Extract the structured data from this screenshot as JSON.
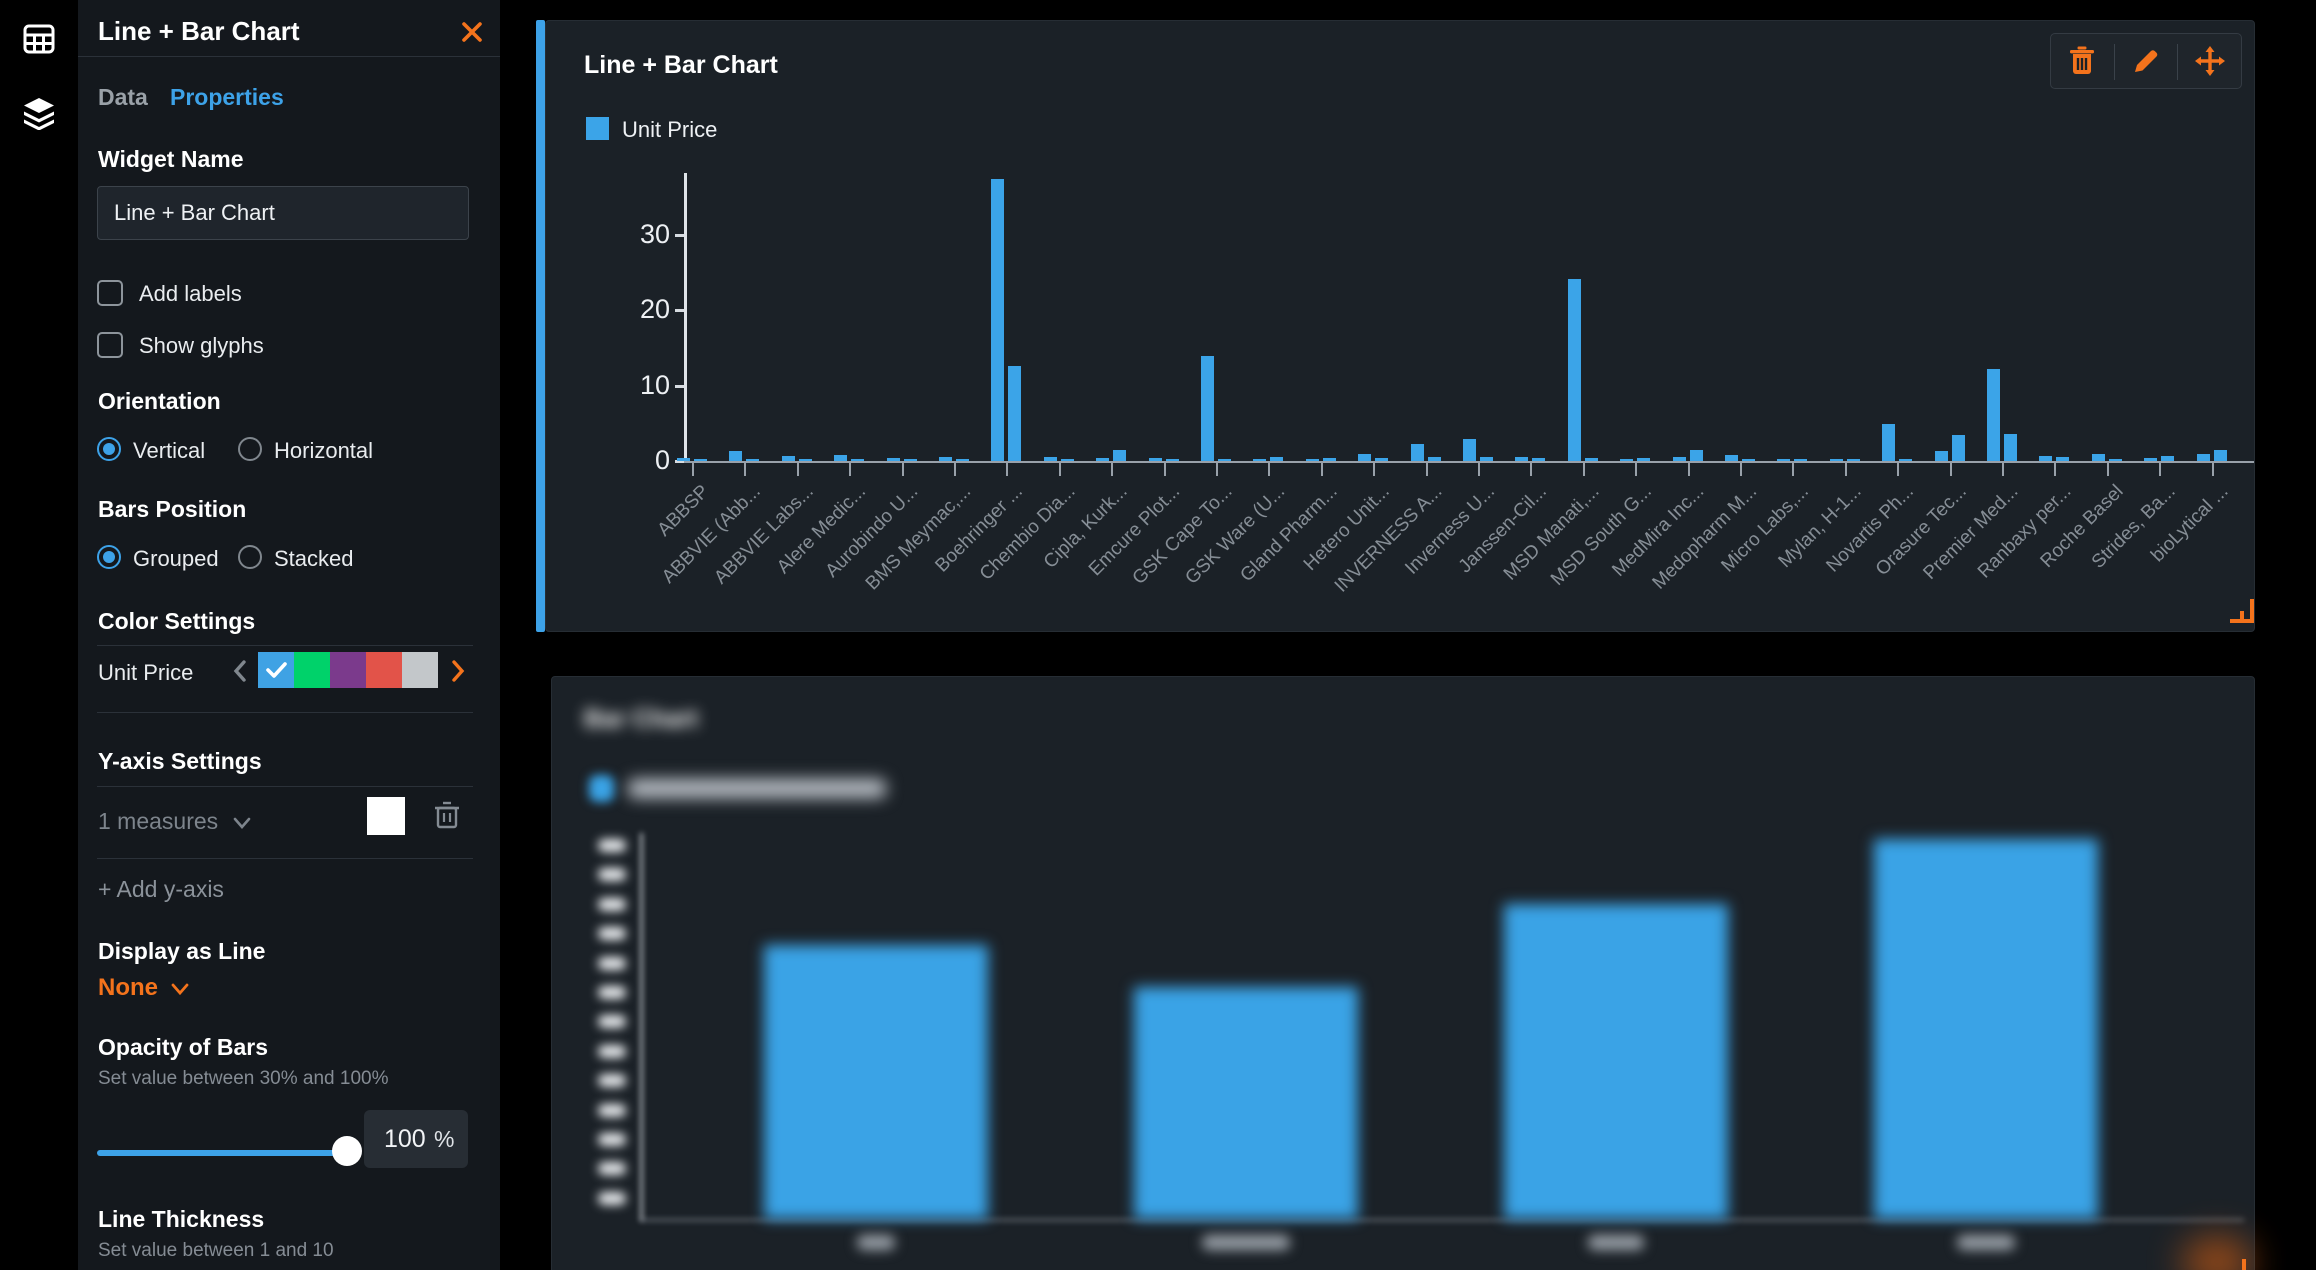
{
  "rail": {
    "icons": [
      "grid-icon",
      "layers-icon"
    ]
  },
  "panel": {
    "title": "Line + Bar Chart",
    "tabs": [
      {
        "label": "Data",
        "active": false
      },
      {
        "label": "Properties",
        "active": true
      }
    ],
    "widget_name": {
      "label": "Widget Name",
      "value": "Line + Bar Chart"
    },
    "checkboxes": [
      {
        "label": "Add labels",
        "checked": false
      },
      {
        "label": "Show glyphs",
        "checked": false
      }
    ],
    "orientation": {
      "label": "Orientation",
      "options": [
        "Vertical",
        "Horizontal"
      ],
      "selected": "Vertical"
    },
    "bars_position": {
      "label": "Bars Position",
      "options": [
        "Grouped",
        "Stacked"
      ],
      "selected": "Grouped"
    },
    "color_settings": {
      "label": "Color Settings",
      "series_label": "Unit Price",
      "swatches": [
        "#3FA2E4",
        "#00D26A",
        "#7B3A8C",
        "#E25349",
        "#C3C7CA"
      ],
      "selected_index": 0
    },
    "y_axis_settings": {
      "label": "Y-axis Settings",
      "measures_label": "1 measures",
      "swatch_color": "#FFFFFF",
      "add_label": "+ Add y-axis"
    },
    "display_as_line": {
      "label": "Display as Line",
      "value": "None"
    },
    "opacity": {
      "label": "Opacity of Bars",
      "hint": "Set value between 30% and 100%",
      "value": "100",
      "unit": "%"
    },
    "line_thickness": {
      "label": "Line Thickness",
      "hint": "Set value between 1 and 10"
    }
  },
  "top_widget": {
    "title": "Line + Bar Chart",
    "legend_label": "Unit Price",
    "toolbar_icons": [
      "trash-icon",
      "pencil-icon",
      "move-icon"
    ]
  },
  "bottom_widget": {
    "title": "Bar Chart",
    "blurred": true,
    "legend_swatch_color": "#3AA3E6"
  },
  "colors": {
    "accent_orange": "#F4731C",
    "accent_blue": "#3DA2E8",
    "bar_blue": "#3BA4E8",
    "panel_bg": "#14181D",
    "widget_bg": "#1B2127"
  },
  "chart_data": [
    {
      "type": "bar",
      "title": "Line + Bar Chart",
      "legend": [
        "Unit Price"
      ],
      "orientation": "vertical",
      "grid": false,
      "y_ticks": [
        0,
        10,
        20,
        30
      ],
      "ylim": [
        0,
        40
      ],
      "bars_per_category": 2,
      "categories": [
        "ABBSP",
        "ABBVIE (Abb...",
        "ABBVIE Labs...",
        "Alere Medic...",
        "Aurobindo U...",
        "BMS Meymac,...",
        "Boehringer ...",
        "Chembio Dia...",
        "Cipla, Kurk...",
        "Emcure Plot...",
        "GSK Cape To...",
        "GSK Ware (U...",
        "Gland Pharm...",
        "Hetero Unit...",
        "INVERNESS A...",
        "Inverness U...",
        "Janssen-Cil...",
        "MSD Manati,...",
        "MSD South G...",
        "MedMira Inc...",
        "Medopharm M...",
        "Micro Labs,...",
        "Mylan, H-1...",
        "Novartis Ph...",
        "Orasure Tec...",
        "Premier Med...",
        "Ranbaxy per...",
        "Roche Basel",
        "Strides, Ba...",
        "bioLytical ..."
      ],
      "values": [
        [
          0.35,
          0.1
        ],
        [
          1.3,
          0.25
        ],
        [
          0.65,
          0.2
        ],
        [
          0.8,
          0.15
        ],
        [
          0.4,
          0.2
        ],
        [
          0.55,
          0.3
        ],
        [
          37.5,
          12.6
        ],
        [
          0.5,
          0.15
        ],
        [
          0.45,
          1.45
        ],
        [
          0.35,
          0.25
        ],
        [
          14.0,
          0.3
        ],
        [
          0.2,
          0.5
        ],
        [
          0.15,
          0.45
        ],
        [
          0.9,
          0.35
        ],
        [
          2.2,
          0.55
        ],
        [
          2.9,
          0.5
        ],
        [
          0.5,
          0.45
        ],
        [
          24.2,
          0.4
        ],
        [
          0.25,
          0.35
        ],
        [
          0.55,
          1.5
        ],
        [
          0.8,
          0.25
        ],
        [
          0.2,
          0.3
        ],
        [
          0.2,
          0.25
        ],
        [
          4.9,
          0.1
        ],
        [
          1.3,
          3.5
        ],
        [
          12.2,
          3.6
        ],
        [
          0.6,
          0.55
        ],
        [
          0.9,
          0.3
        ],
        [
          0.4,
          0.7
        ],
        [
          0.9,
          1.5
        ]
      ]
    },
    {
      "type": "bar",
      "title": "Bar Chart",
      "blurred": true,
      "bar_count": 4,
      "relative_heights": [
        0.72,
        0.61,
        0.83,
        1.0
      ],
      "y_tick_count": 13,
      "x_label_count": 4
    }
  ]
}
